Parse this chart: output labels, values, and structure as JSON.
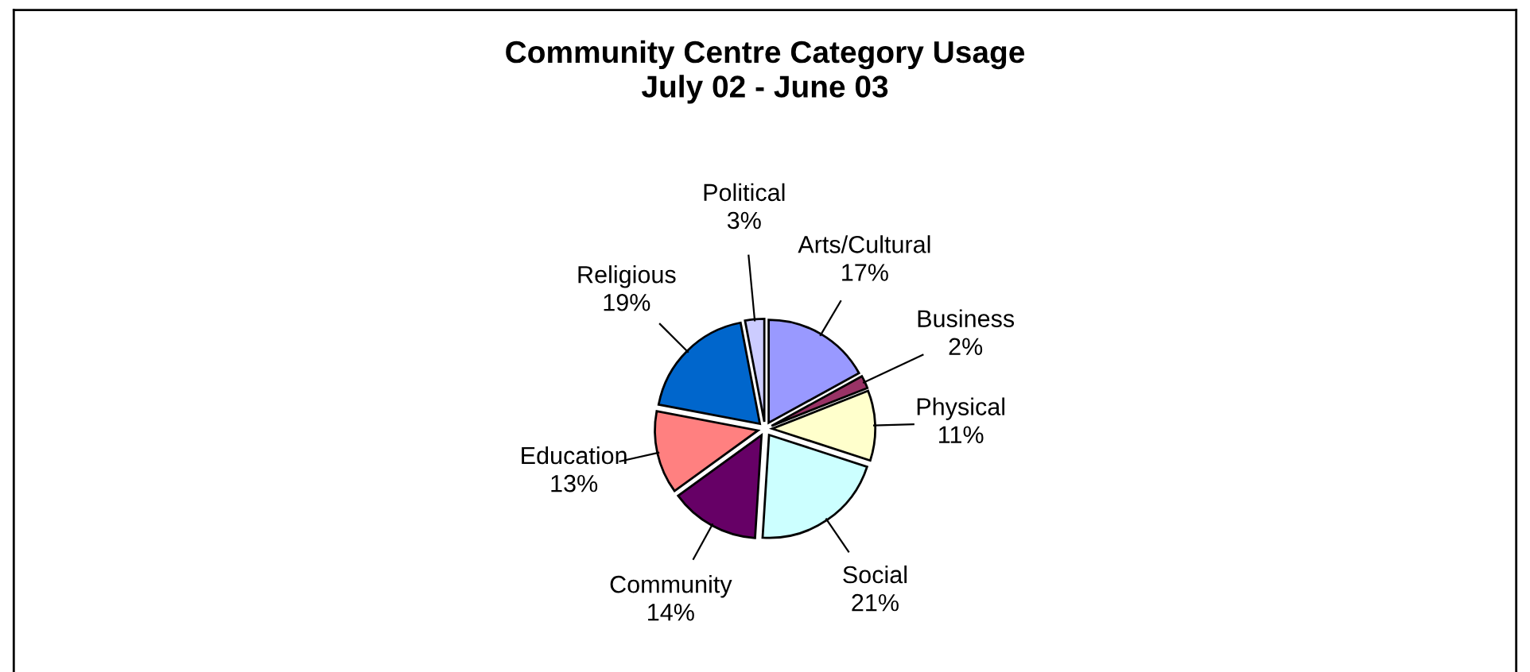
{
  "chart_data": {
    "type": "pie",
    "title": "Community Centre Category Usage\nJuly 02 - June 03",
    "categories": [
      "Arts/Cultural",
      "Business",
      "Physical",
      "Social",
      "Community",
      "Education",
      "Religious",
      "Political"
    ],
    "values": [
      17,
      2,
      11,
      21,
      14,
      13,
      19,
      3
    ],
    "value_labels": [
      "17%",
      "2%",
      "11%",
      "21%",
      "14%",
      "13%",
      "19%",
      "3%"
    ],
    "colors": [
      "#9999ff",
      "#993366",
      "#ffffcc",
      "#ccffff",
      "#660066",
      "#ff8080",
      "#0066cc",
      "#ccccff"
    ],
    "legend": false
  }
}
